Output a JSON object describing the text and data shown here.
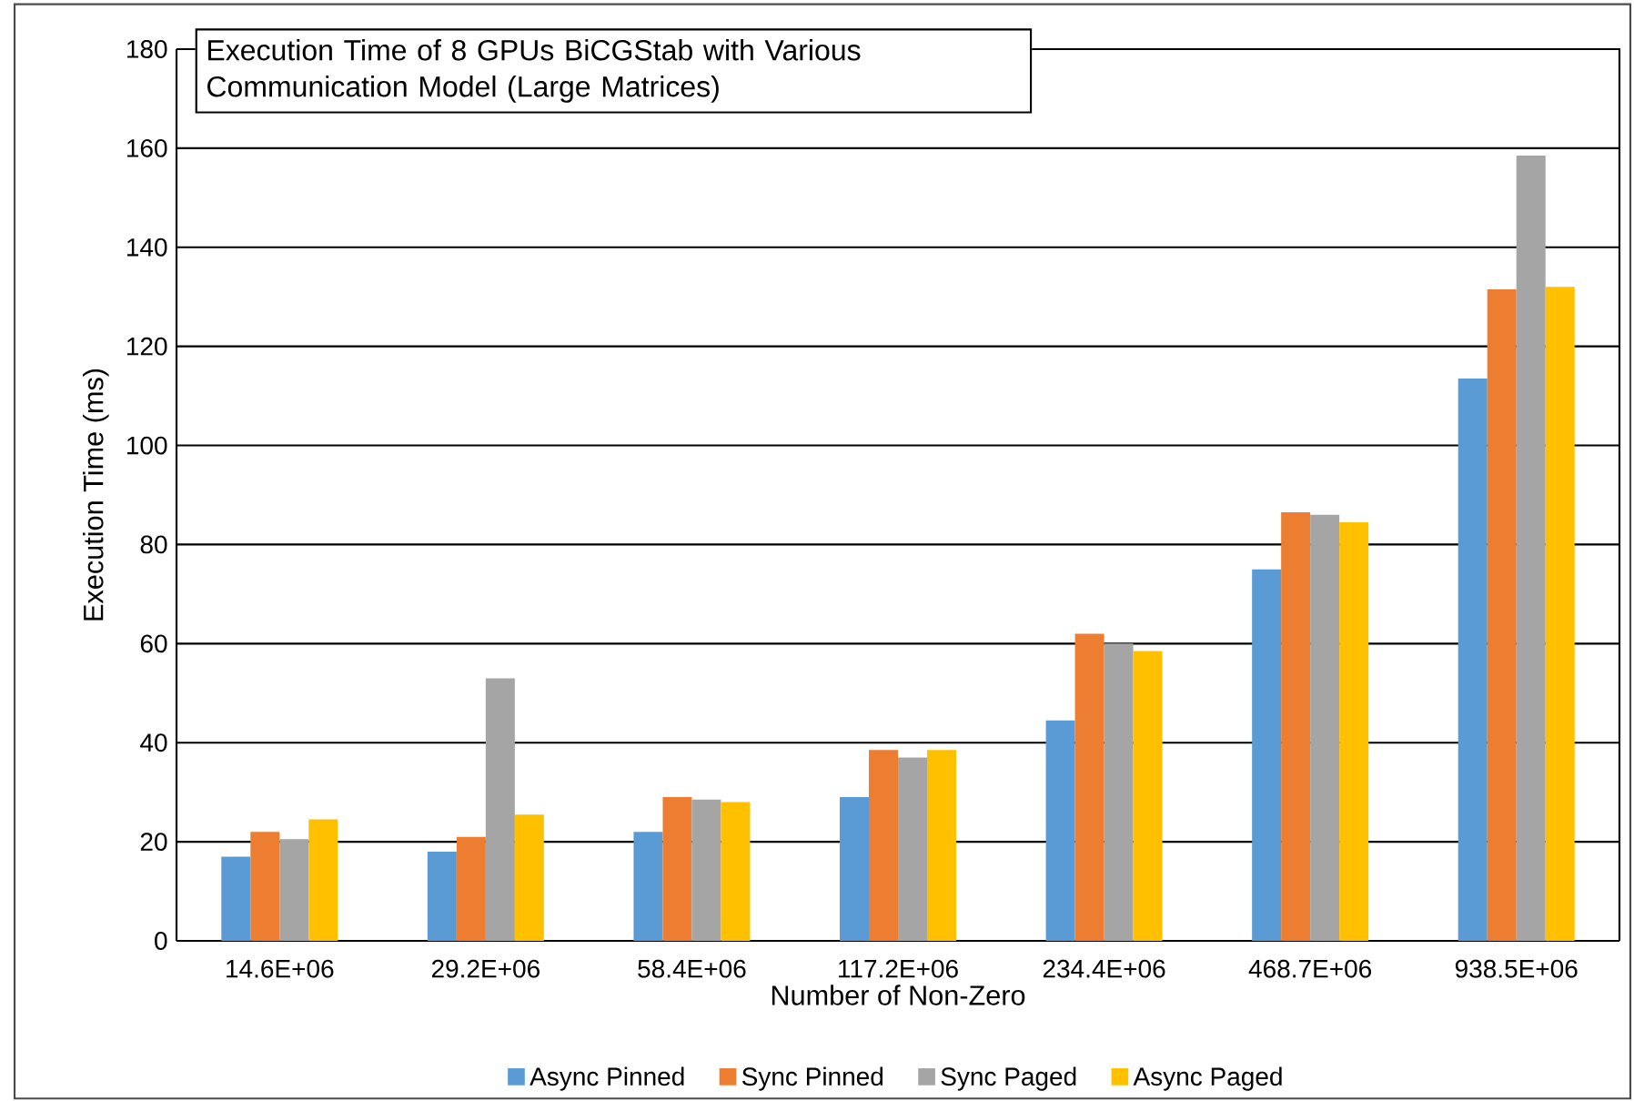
{
  "chart_data": {
    "type": "bar",
    "title": "Execution Time of 8 GPUs BiCGStab with Various Communication Model (Large Matrices)",
    "xlabel": "Number of Non-Zero",
    "ylabel": "Execution Time  (ms)",
    "categories": [
      "14.6E+06",
      "29.2E+06",
      "58.4E+06",
      "117.2E+06",
      "234.4E+06",
      "468.7E+06",
      "938.5E+06"
    ],
    "series": [
      {
        "name": "Async Pinned",
        "color": "#5b9bd5",
        "values": [
          17,
          18,
          22,
          29,
          44.5,
          75,
          113.5
        ]
      },
      {
        "name": "Sync Pinned",
        "color": "#ed7d31",
        "values": [
          22,
          21,
          29,
          38.5,
          62,
          86.5,
          131.5
        ]
      },
      {
        "name": "Sync Paged",
        "color": "#a5a5a5",
        "values": [
          20.5,
          53,
          28.5,
          37,
          60,
          86,
          158.5
        ]
      },
      {
        "name": "Async Paged",
        "color": "#ffc000",
        "values": [
          24.5,
          25.5,
          28,
          38.5,
          58.5,
          84.5,
          132
        ]
      }
    ],
    "ylim": [
      0,
      180
    ],
    "yticks": [
      0,
      20,
      40,
      60,
      80,
      100,
      120,
      140,
      160,
      180
    ],
    "grid": "y",
    "legend": "bottom"
  }
}
